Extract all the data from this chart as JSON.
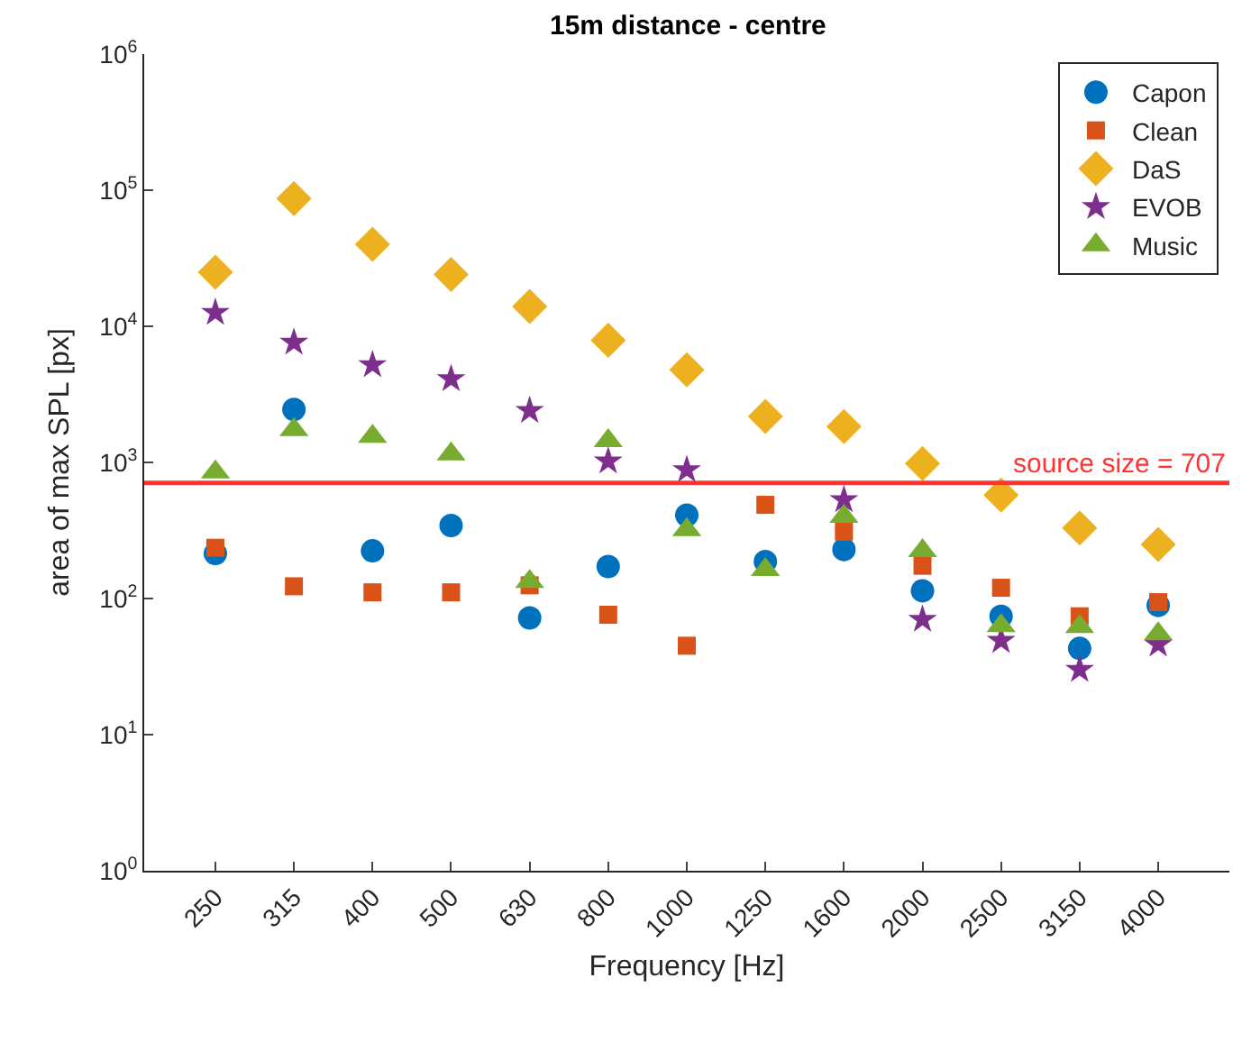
{
  "chart_data": {
    "type": "scatter",
    "title": "15m distance - centre",
    "xlabel": "Frequency [Hz]",
    "ylabel": "area of max SPL [px]",
    "categories": [
      "250",
      "315",
      "400",
      "500",
      "630",
      "800",
      "1000",
      "1250",
      "1600",
      "2000",
      "2500",
      "3150",
      "4000"
    ],
    "series": [
      {
        "name": "Capon",
        "color": "#0072bd",
        "marker": "circle",
        "values": [
          214,
          2450,
          224,
          344,
          72,
          172,
          410,
          187,
          229,
          114,
          74,
          43,
          89
        ]
      },
      {
        "name": "Clean",
        "color": "#d95319",
        "marker": "square",
        "values": [
          236,
          123,
          111,
          111,
          125,
          76,
          45,
          488,
          310,
          174,
          120,
          74,
          94
        ]
      },
      {
        "name": "DaS",
        "color": "#edb120",
        "marker": "diamond",
        "values": [
          25000,
          87000,
          40000,
          24000,
          14000,
          7900,
          4800,
          2180,
          1830,
          980,
          575,
          330,
          250
        ]
      },
      {
        "name": "EVOB",
        "color": "#7e2f8e",
        "marker": "star",
        "values": [
          12600,
          7600,
          5200,
          4100,
          2400,
          1020,
          880,
          null,
          530,
          70,
          49,
          30,
          46
        ]
      },
      {
        "name": "Music",
        "color": "#77ac30",
        "marker": "triangle",
        "values": [
          850,
          1740,
          1550,
          1150,
          133,
          1440,
          320,
          163,
          400,
          224,
          63,
          62,
          55
        ]
      }
    ],
    "log": "y",
    "ylim": [
      1,
      1000000
    ],
    "yticks": [
      {
        "value": 1,
        "label": "10$^{0}$"
      },
      {
        "value": 10,
        "label": "10$^{1}$"
      },
      {
        "value": 100,
        "label": "10$^{2}$"
      },
      {
        "value": 1000,
        "label": "10$^{3}$"
      },
      {
        "value": 10000,
        "label": "10$^{4}$"
      },
      {
        "value": 100000,
        "label": "10$^{5}$"
      },
      {
        "value": 1000000,
        "label": "10$^{6}$"
      }
    ],
    "ref_lines": [
      {
        "axis": "y",
        "value": 707,
        "label": "source size = 707",
        "color": "#ff3333"
      }
    ],
    "legend": "top right",
    "grid": false
  }
}
